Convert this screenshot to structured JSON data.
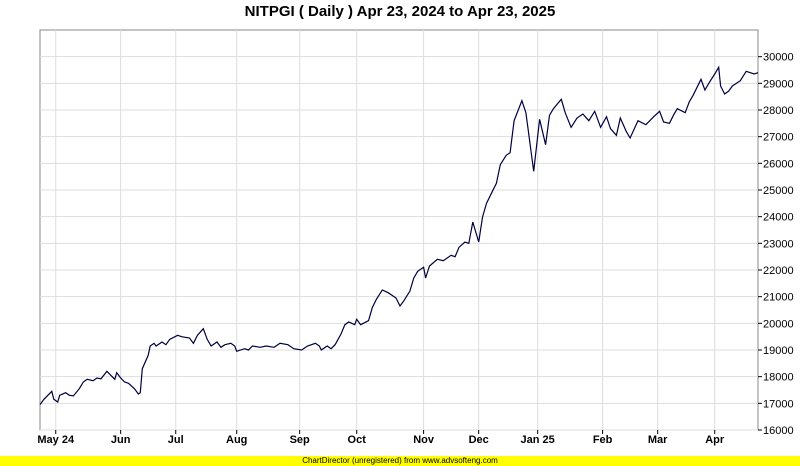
{
  "footer_text": "ChartDirector (unregistered) from www.advsofteng.com",
  "chart_data": {
    "type": "line",
    "title": "NITPGI ( Daily ) Apr 23, 2024 to Apr 23, 2025",
    "xlabel": "",
    "ylabel": "",
    "ylim": [
      16000,
      30500
    ],
    "grid": true,
    "y_axis_position": "right",
    "y_ticks": [
      16000,
      17000,
      18000,
      19000,
      20000,
      21000,
      22000,
      23000,
      24000,
      25000,
      26000,
      27000,
      28000,
      29000,
      30000
    ],
    "x_ticks": [
      {
        "label": "May 24",
        "date": "2024-05-01"
      },
      {
        "label": "Jun",
        "date": "2024-06-03"
      },
      {
        "label": "Jul",
        "date": "2024-07-01"
      },
      {
        "label": "Aug",
        "date": "2024-08-01"
      },
      {
        "label": "Sep",
        "date": "2024-09-02"
      },
      {
        "label": "Oct",
        "date": "2024-10-01"
      },
      {
        "label": "Nov",
        "date": "2024-11-04"
      },
      {
        "label": "Dec",
        "date": "2024-12-02"
      },
      {
        "label": "Jan 25",
        "date": "2025-01-01"
      },
      {
        "label": "Feb",
        "date": "2025-02-03"
      },
      {
        "label": "Mar",
        "date": "2025-03-03"
      },
      {
        "label": "Apr",
        "date": "2025-04-01"
      }
    ],
    "line_color": "#000040",
    "x_range": [
      "2024-04-23",
      "2025-04-23"
    ],
    "series": [
      {
        "name": "",
        "points": [
          [
            "2024-04-23",
            16950
          ],
          [
            "2024-04-25",
            17150
          ],
          [
            "2024-04-29",
            17450
          ],
          [
            "2024-04-30",
            17150
          ],
          [
            "2024-05-02",
            17050
          ],
          [
            "2024-05-03",
            17300
          ],
          [
            "2024-05-06",
            17400
          ],
          [
            "2024-05-08",
            17300
          ],
          [
            "2024-05-10",
            17280
          ],
          [
            "2024-05-13",
            17550
          ],
          [
            "2024-05-15",
            17800
          ],
          [
            "2024-05-17",
            17900
          ],
          [
            "2024-05-20",
            17850
          ],
          [
            "2024-05-22",
            17950
          ],
          [
            "2024-05-24",
            17920
          ],
          [
            "2024-05-27",
            18200
          ],
          [
            "2024-05-29",
            18050
          ],
          [
            "2024-05-31",
            17900
          ],
          [
            "2024-06-01",
            18150
          ],
          [
            "2024-06-03",
            17950
          ],
          [
            "2024-06-05",
            17800
          ],
          [
            "2024-06-07",
            17750
          ],
          [
            "2024-06-10",
            17550
          ],
          [
            "2024-06-12",
            17350
          ],
          [
            "2024-06-13",
            17400
          ],
          [
            "2024-06-14",
            18300
          ],
          [
            "2024-06-17",
            18800
          ],
          [
            "2024-06-18",
            19150
          ],
          [
            "2024-06-20",
            19250
          ],
          [
            "2024-06-21",
            19150
          ],
          [
            "2024-06-24",
            19300
          ],
          [
            "2024-06-26",
            19200
          ],
          [
            "2024-06-28",
            19400
          ],
          [
            "2024-07-02",
            19550
          ],
          [
            "2024-07-04",
            19500
          ],
          [
            "2024-07-08",
            19450
          ],
          [
            "2024-07-10",
            19250
          ],
          [
            "2024-07-12",
            19550
          ],
          [
            "2024-07-15",
            19800
          ],
          [
            "2024-07-17",
            19400
          ],
          [
            "2024-07-19",
            19150
          ],
          [
            "2024-07-22",
            19300
          ],
          [
            "2024-07-24",
            19100
          ],
          [
            "2024-07-26",
            19200
          ],
          [
            "2024-07-29",
            19250
          ],
          [
            "2024-07-31",
            19150
          ],
          [
            "2024-08-01",
            18950
          ],
          [
            "2024-08-05",
            19050
          ],
          [
            "2024-08-07",
            19000
          ],
          [
            "2024-08-09",
            19150
          ],
          [
            "2024-08-13",
            19100
          ],
          [
            "2024-08-16",
            19150
          ],
          [
            "2024-08-20",
            19100
          ],
          [
            "2024-08-23",
            19250
          ],
          [
            "2024-08-27",
            19200
          ],
          [
            "2024-08-30",
            19050
          ],
          [
            "2024-09-03",
            19000
          ],
          [
            "2024-09-06",
            19150
          ],
          [
            "2024-09-10",
            19250
          ],
          [
            "2024-09-12",
            19150
          ],
          [
            "2024-09-13",
            19000
          ],
          [
            "2024-09-16",
            19150
          ],
          [
            "2024-09-18",
            19050
          ],
          [
            "2024-09-20",
            19200
          ],
          [
            "2024-09-23",
            19600
          ],
          [
            "2024-09-25",
            19950
          ],
          [
            "2024-09-27",
            20050
          ],
          [
            "2024-09-30",
            19950
          ],
          [
            "2024-10-01",
            20150
          ],
          [
            "2024-10-03",
            19950
          ],
          [
            "2024-10-07",
            20100
          ],
          [
            "2024-10-09",
            20600
          ],
          [
            "2024-10-11",
            20900
          ],
          [
            "2024-10-14",
            21250
          ],
          [
            "2024-10-17",
            21150
          ],
          [
            "2024-10-21",
            20950
          ],
          [
            "2024-10-23",
            20650
          ],
          [
            "2024-10-25",
            20850
          ],
          [
            "2024-10-28",
            21200
          ],
          [
            "2024-10-30",
            21700
          ],
          [
            "2024-11-01",
            21950
          ],
          [
            "2024-11-04",
            22100
          ],
          [
            "2024-11-05",
            21700
          ],
          [
            "2024-11-07",
            22150
          ],
          [
            "2024-11-11",
            22400
          ],
          [
            "2024-11-14",
            22350
          ],
          [
            "2024-11-18",
            22550
          ],
          [
            "2024-11-20",
            22500
          ],
          [
            "2024-11-22",
            22850
          ],
          [
            "2024-11-25",
            23050
          ],
          [
            "2024-11-27",
            23000
          ],
          [
            "2024-11-29",
            23800
          ],
          [
            "2024-12-02",
            23050
          ],
          [
            "2024-12-04",
            24000
          ],
          [
            "2024-12-06",
            24500
          ],
          [
            "2024-12-09",
            24950
          ],
          [
            "2024-12-11",
            25250
          ],
          [
            "2024-12-13",
            25950
          ],
          [
            "2024-12-16",
            26300
          ],
          [
            "2024-12-18",
            26400
          ],
          [
            "2024-12-20",
            27600
          ],
          [
            "2024-12-24",
            28350
          ],
          [
            "2024-12-26",
            27900
          ],
          [
            "2024-12-30",
            25700
          ],
          [
            "2025-01-02",
            27650
          ],
          [
            "2025-01-05",
            26700
          ],
          [
            "2025-01-07",
            27800
          ],
          [
            "2025-01-09",
            28050
          ],
          [
            "2025-01-13",
            28400
          ],
          [
            "2025-01-15",
            27900
          ],
          [
            "2025-01-18",
            27350
          ],
          [
            "2025-01-21",
            27700
          ],
          [
            "2025-01-24",
            27850
          ],
          [
            "2025-01-27",
            27600
          ],
          [
            "2025-01-30",
            27950
          ],
          [
            "2025-02-02",
            27350
          ],
          [
            "2025-02-05",
            27750
          ],
          [
            "2025-02-07",
            27300
          ],
          [
            "2025-02-10",
            27050
          ],
          [
            "2025-02-12",
            27700
          ],
          [
            "2025-02-15",
            27200
          ],
          [
            "2025-02-17",
            26950
          ],
          [
            "2025-02-21",
            27600
          ],
          [
            "2025-02-25",
            27450
          ],
          [
            "2025-03-01",
            27750
          ],
          [
            "2025-03-04",
            27950
          ],
          [
            "2025-03-06",
            27550
          ],
          [
            "2025-03-09",
            27500
          ],
          [
            "2025-03-11",
            27800
          ],
          [
            "2025-03-13",
            28050
          ],
          [
            "2025-03-17",
            27900
          ],
          [
            "2025-03-19",
            28300
          ],
          [
            "2025-03-21",
            28550
          ],
          [
            "2025-03-25",
            29150
          ],
          [
            "2025-03-27",
            28750
          ],
          [
            "2025-03-29",
            29000
          ],
          [
            "2025-04-01",
            29350
          ],
          [
            "2025-04-03",
            29600
          ],
          [
            "2025-04-04",
            28900
          ],
          [
            "2025-04-06",
            28600
          ],
          [
            "2025-04-08",
            28700
          ],
          [
            "2025-04-10",
            28900
          ],
          [
            "2025-04-14",
            29100
          ],
          [
            "2025-04-17",
            29450
          ],
          [
            "2025-04-21",
            29350
          ],
          [
            "2025-04-23",
            29400
          ]
        ]
      }
    ]
  }
}
